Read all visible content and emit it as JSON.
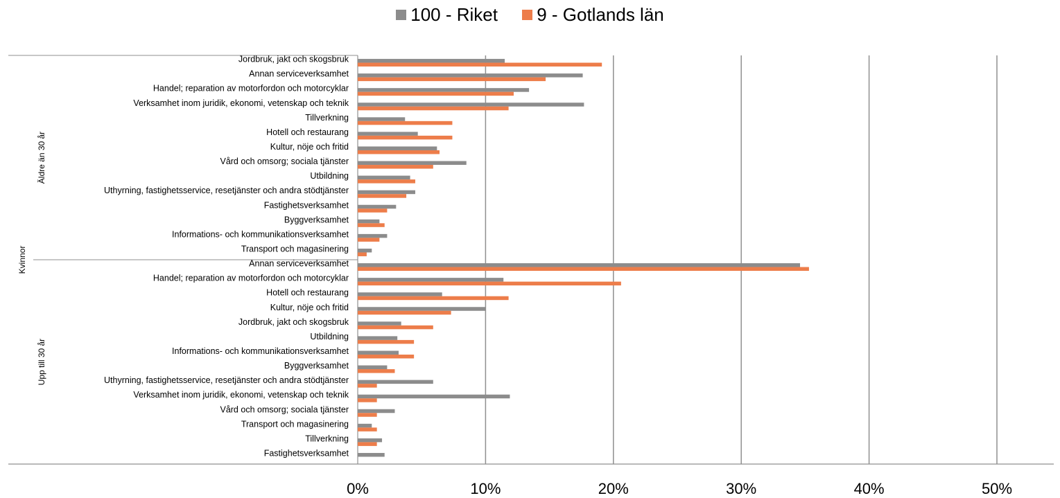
{
  "chart_data": {
    "type": "bar",
    "orientation": "horizontal",
    "title": "",
    "xlim": [
      0,
      0.5
    ],
    "x_ticks": [
      "0%",
      "10%",
      "20%",
      "30%",
      "40%",
      "50%"
    ],
    "grid": true,
    "legend_position": "top",
    "series": [
      {
        "name": "100 - Riket",
        "color": "#8c8c8c"
      },
      {
        "name": "9 - Gotlands län",
        "color": "#ed7d4a"
      }
    ],
    "outer_group": "Kvinnor",
    "groups": [
      {
        "label": "Äldre än 30 år",
        "categories": [
          "Jordbruk, jakt och skogsbruk",
          "Annan serviceverksamhet",
          "Handel; reparation av motorfordon och motorcyklar",
          "Verksamhet inom juridik, ekonomi, vetenskap och teknik",
          "Tillverkning",
          "Hotell och restaurang",
          "Kultur, nöje och fritid",
          "Vård och omsorg; sociala tjänster",
          "Utbildning",
          "Uthyrning, fastighetsservice, resetjänster och andra stödtjänster",
          "Fastighetsverksamhet",
          "Byggverksamhet",
          "Informations- och kommunikationsverksamhet",
          "Transport och magasinering"
        ],
        "riket": [
          0.115,
          0.176,
          0.134,
          0.177,
          0.037,
          0.047,
          0.062,
          0.085,
          0.041,
          0.045,
          0.03,
          0.017,
          0.023,
          0.011
        ],
        "gotland": [
          0.191,
          0.147,
          0.122,
          0.118,
          0.074,
          0.074,
          0.064,
          0.059,
          0.045,
          0.038,
          0.023,
          0.021,
          0.017,
          0.007
        ]
      },
      {
        "label": "Upp till 30 år",
        "categories": [
          "Annan serviceverksamhet",
          "Handel; reparation av motorfordon och motorcyklar",
          "Hotell och restaurang",
          "Kultur, nöje och fritid",
          "Jordbruk, jakt och skogsbruk",
          "Utbildning",
          "Informations- och kommunikationsverksamhet",
          "Byggverksamhet",
          "Uthyrning, fastighetsservice, resetjänster och andra stödtjänster",
          "Verksamhet inom juridik, ekonomi, vetenskap och teknik",
          "Vård och omsorg; sociala tjänster",
          "Transport och magasinering",
          "Tillverkning",
          "Fastighetsverksamhet"
        ],
        "riket": [
          0.346,
          0.114,
          0.066,
          0.1,
          0.034,
          0.031,
          0.032,
          0.023,
          0.059,
          0.119,
          0.029,
          0.011,
          0.019,
          0.021
        ],
        "gotland": [
          0.353,
          0.206,
          0.118,
          0.073,
          0.059,
          0.044,
          0.044,
          0.029,
          0.015,
          0.015,
          0.015,
          0.015,
          0.015,
          0.0
        ]
      }
    ]
  }
}
